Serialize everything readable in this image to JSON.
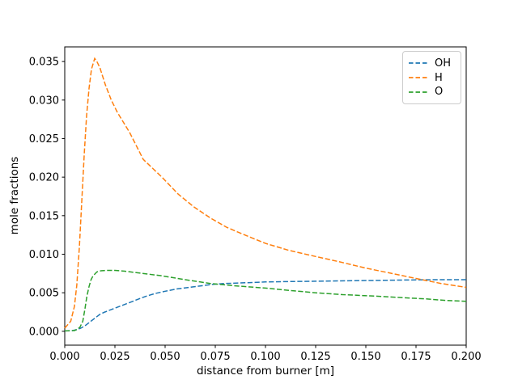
{
  "figure": {
    "background": "#ffffff",
    "frame_color": "#000000"
  },
  "chart_data": {
    "type": "line",
    "title": "",
    "xlabel": "distance from burner [m]",
    "ylabel": "mole fractions",
    "xlim": [
      0,
      0.2
    ],
    "ylim": [
      -0.0018,
      0.0369
    ],
    "grid": false,
    "line_style": "dashed",
    "legend_position": "upper right",
    "xticks": {
      "values": [
        0,
        0.025,
        0.05,
        0.075,
        0.1,
        0.125,
        0.15,
        0.175,
        0.2
      ],
      "labels": [
        "0.000",
        "0.025",
        "0.050",
        "0.075",
        "0.100",
        "0.125",
        "0.150",
        "0.175",
        "0.200"
      ]
    },
    "yticks": {
      "values": [
        0,
        0.005,
        0.01,
        0.015,
        0.02,
        0.025,
        0.03,
        0.035
      ],
      "labels": [
        "0.000",
        "0.005",
        "0.010",
        "0.015",
        "0.020",
        "0.025",
        "0.030",
        "0.035"
      ]
    },
    "series": [
      {
        "name": "OH",
        "label": "OH",
        "color": "#1f77b4",
        "x": [
          0,
          0.004,
          0.006,
          0.008,
          0.01,
          0.0125,
          0.015,
          0.0175,
          0.02,
          0.024,
          0.028,
          0.032,
          0.036,
          0.04,
          0.045,
          0.05,
          0.056,
          0.062,
          0.068,
          0.074,
          0.08,
          0.09,
          0.1,
          0.112,
          0.125,
          0.14,
          0.155,
          0.17,
          0.185,
          0.2
        ],
        "y": [
          5e-05,
          0.0001,
          0.0002,
          0.0004,
          0.0007,
          0.0012,
          0.0017,
          0.0022,
          0.0025,
          0.0029,
          0.0033,
          0.0037,
          0.0041,
          0.0045,
          0.0049,
          0.0052,
          0.0055,
          0.0057,
          0.0059,
          0.0061,
          0.0062,
          0.0063,
          0.0064,
          0.00645,
          0.0065,
          0.00655,
          0.0066,
          0.00665,
          0.0067,
          0.0067
        ]
      },
      {
        "name": "H",
        "label": "H",
        "color": "#ff7f0e",
        "x": [
          0,
          0.003,
          0.0048,
          0.006,
          0.0073,
          0.0085,
          0.0097,
          0.0109,
          0.0121,
          0.0133,
          0.0149,
          0.016,
          0.0175,
          0.0202,
          0.0232,
          0.0262,
          0.0323,
          0.0391,
          0.0484,
          0.0565,
          0.0645,
          0.0726,
          0.0806,
          0.0887,
          0.1,
          0.1116,
          0.125,
          0.1371,
          0.15,
          0.1613,
          0.175,
          0.1875,
          0.2
        ],
        "y": [
          0.0004,
          0.0013,
          0.0032,
          0.006,
          0.011,
          0.017,
          0.023,
          0.028,
          0.0315,
          0.034,
          0.0354,
          0.035,
          0.0342,
          0.032,
          0.03,
          0.0284,
          0.0258,
          0.0223,
          0.02,
          0.0178,
          0.0161,
          0.0147,
          0.0135,
          0.0126,
          0.0114,
          0.0105,
          0.0097,
          0.009,
          0.0082,
          0.0076,
          0.00685,
          0.0062,
          0.0057
        ]
      },
      {
        "name": "O",
        "label": "O",
        "color": "#2ca02c",
        "x": [
          0,
          0.005,
          0.0075,
          0.009,
          0.01,
          0.011,
          0.0121,
          0.0131,
          0.0141,
          0.016,
          0.018,
          0.021,
          0.025,
          0.03,
          0.036,
          0.0484,
          0.06,
          0.0726,
          0.085,
          0.1,
          0.112,
          0.125,
          0.1385,
          0.152,
          0.166,
          0.18,
          0.19,
          0.2
        ],
        "y": [
          5e-05,
          0.0001,
          0.0005,
          0.0013,
          0.0028,
          0.0045,
          0.0058,
          0.0067,
          0.0072,
          0.0077,
          0.00785,
          0.0079,
          0.0079,
          0.0078,
          0.0076,
          0.0072,
          0.0067,
          0.0062,
          0.0059,
          0.0056,
          0.0053,
          0.005,
          0.00475,
          0.0046,
          0.0044,
          0.0042,
          0.004,
          0.0039
        ]
      }
    ]
  }
}
